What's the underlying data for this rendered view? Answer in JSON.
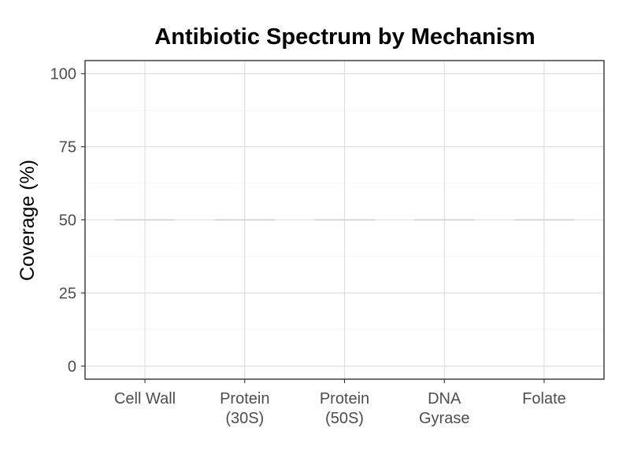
{
  "chart_data": {
    "type": "bar",
    "title": "Antibiotic Spectrum by Mechanism",
    "xlabel": "",
    "ylabel": "Coverage (%)",
    "categories": [
      [
        "Cell Wall"
      ],
      [
        "Protein",
        "(30S)"
      ],
      [
        "Protein",
        "(50S)"
      ],
      [
        "DNA",
        "Gyrase"
      ],
      [
        "Folate"
      ]
    ],
    "values": [
      50,
      50,
      50,
      50,
      50
    ],
    "ylim": [
      -4.5,
      104.5
    ],
    "yticks": [
      0,
      25,
      50,
      75,
      100
    ],
    "grid": true,
    "legend": "none"
  },
  "colors": {
    "panel_border": "#333333",
    "grid_major": "#dedede",
    "grid_minor": "#efefef",
    "mark": "#cccccc",
    "tick_text": "#4d4d4d",
    "tick_mark": "#333333"
  }
}
